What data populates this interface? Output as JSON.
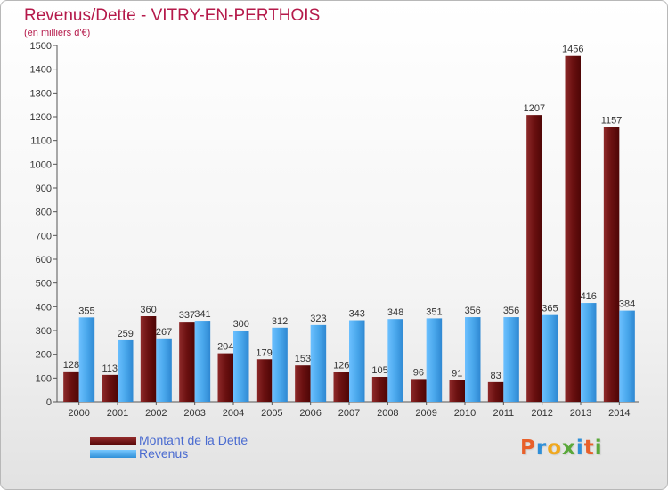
{
  "chart_data": {
    "type": "bar",
    "title": "Revenus/Dette - VITRY-EN-PERTHOIS",
    "subtitle": "(en milliers d'€)",
    "categories": [
      "2000",
      "2001",
      "2002",
      "2003",
      "2004",
      "2005",
      "2006",
      "2007",
      "2008",
      "2009",
      "2010",
      "2011",
      "2012",
      "2013",
      "2014"
    ],
    "series": [
      {
        "name": "Montant de la Dette",
        "color": "#7a1414",
        "values": [
          128,
          113,
          360,
          337,
          204,
          179,
          153,
          126,
          105,
          96,
          91,
          83,
          1207,
          1456,
          1157
        ]
      },
      {
        "name": "Revenus",
        "color": "#4aa8ec",
        "values": [
          355,
          259,
          267,
          341,
          300,
          312,
          323,
          343,
          348,
          351,
          356,
          356,
          365,
          416,
          384
        ]
      }
    ],
    "y_ticks": [
      0,
      100,
      200,
      300,
      400,
      500,
      600,
      700,
      800,
      900,
      1000,
      1100,
      1200,
      1300,
      1400,
      1500
    ],
    "ylim": [
      0,
      1500
    ],
    "grid": false,
    "legend": "bottom-left"
  },
  "legend": {
    "debt_label": "Montant de la Dette",
    "revenue_label": "Revenus"
  },
  "logo": {
    "text": "Proxiti",
    "letter_colors": [
      "#e8602a",
      "#2f8fd8",
      "#f0a81e",
      "#5aa83a",
      "#2f8fd8",
      "#e8602a",
      "#5aa83a"
    ]
  }
}
